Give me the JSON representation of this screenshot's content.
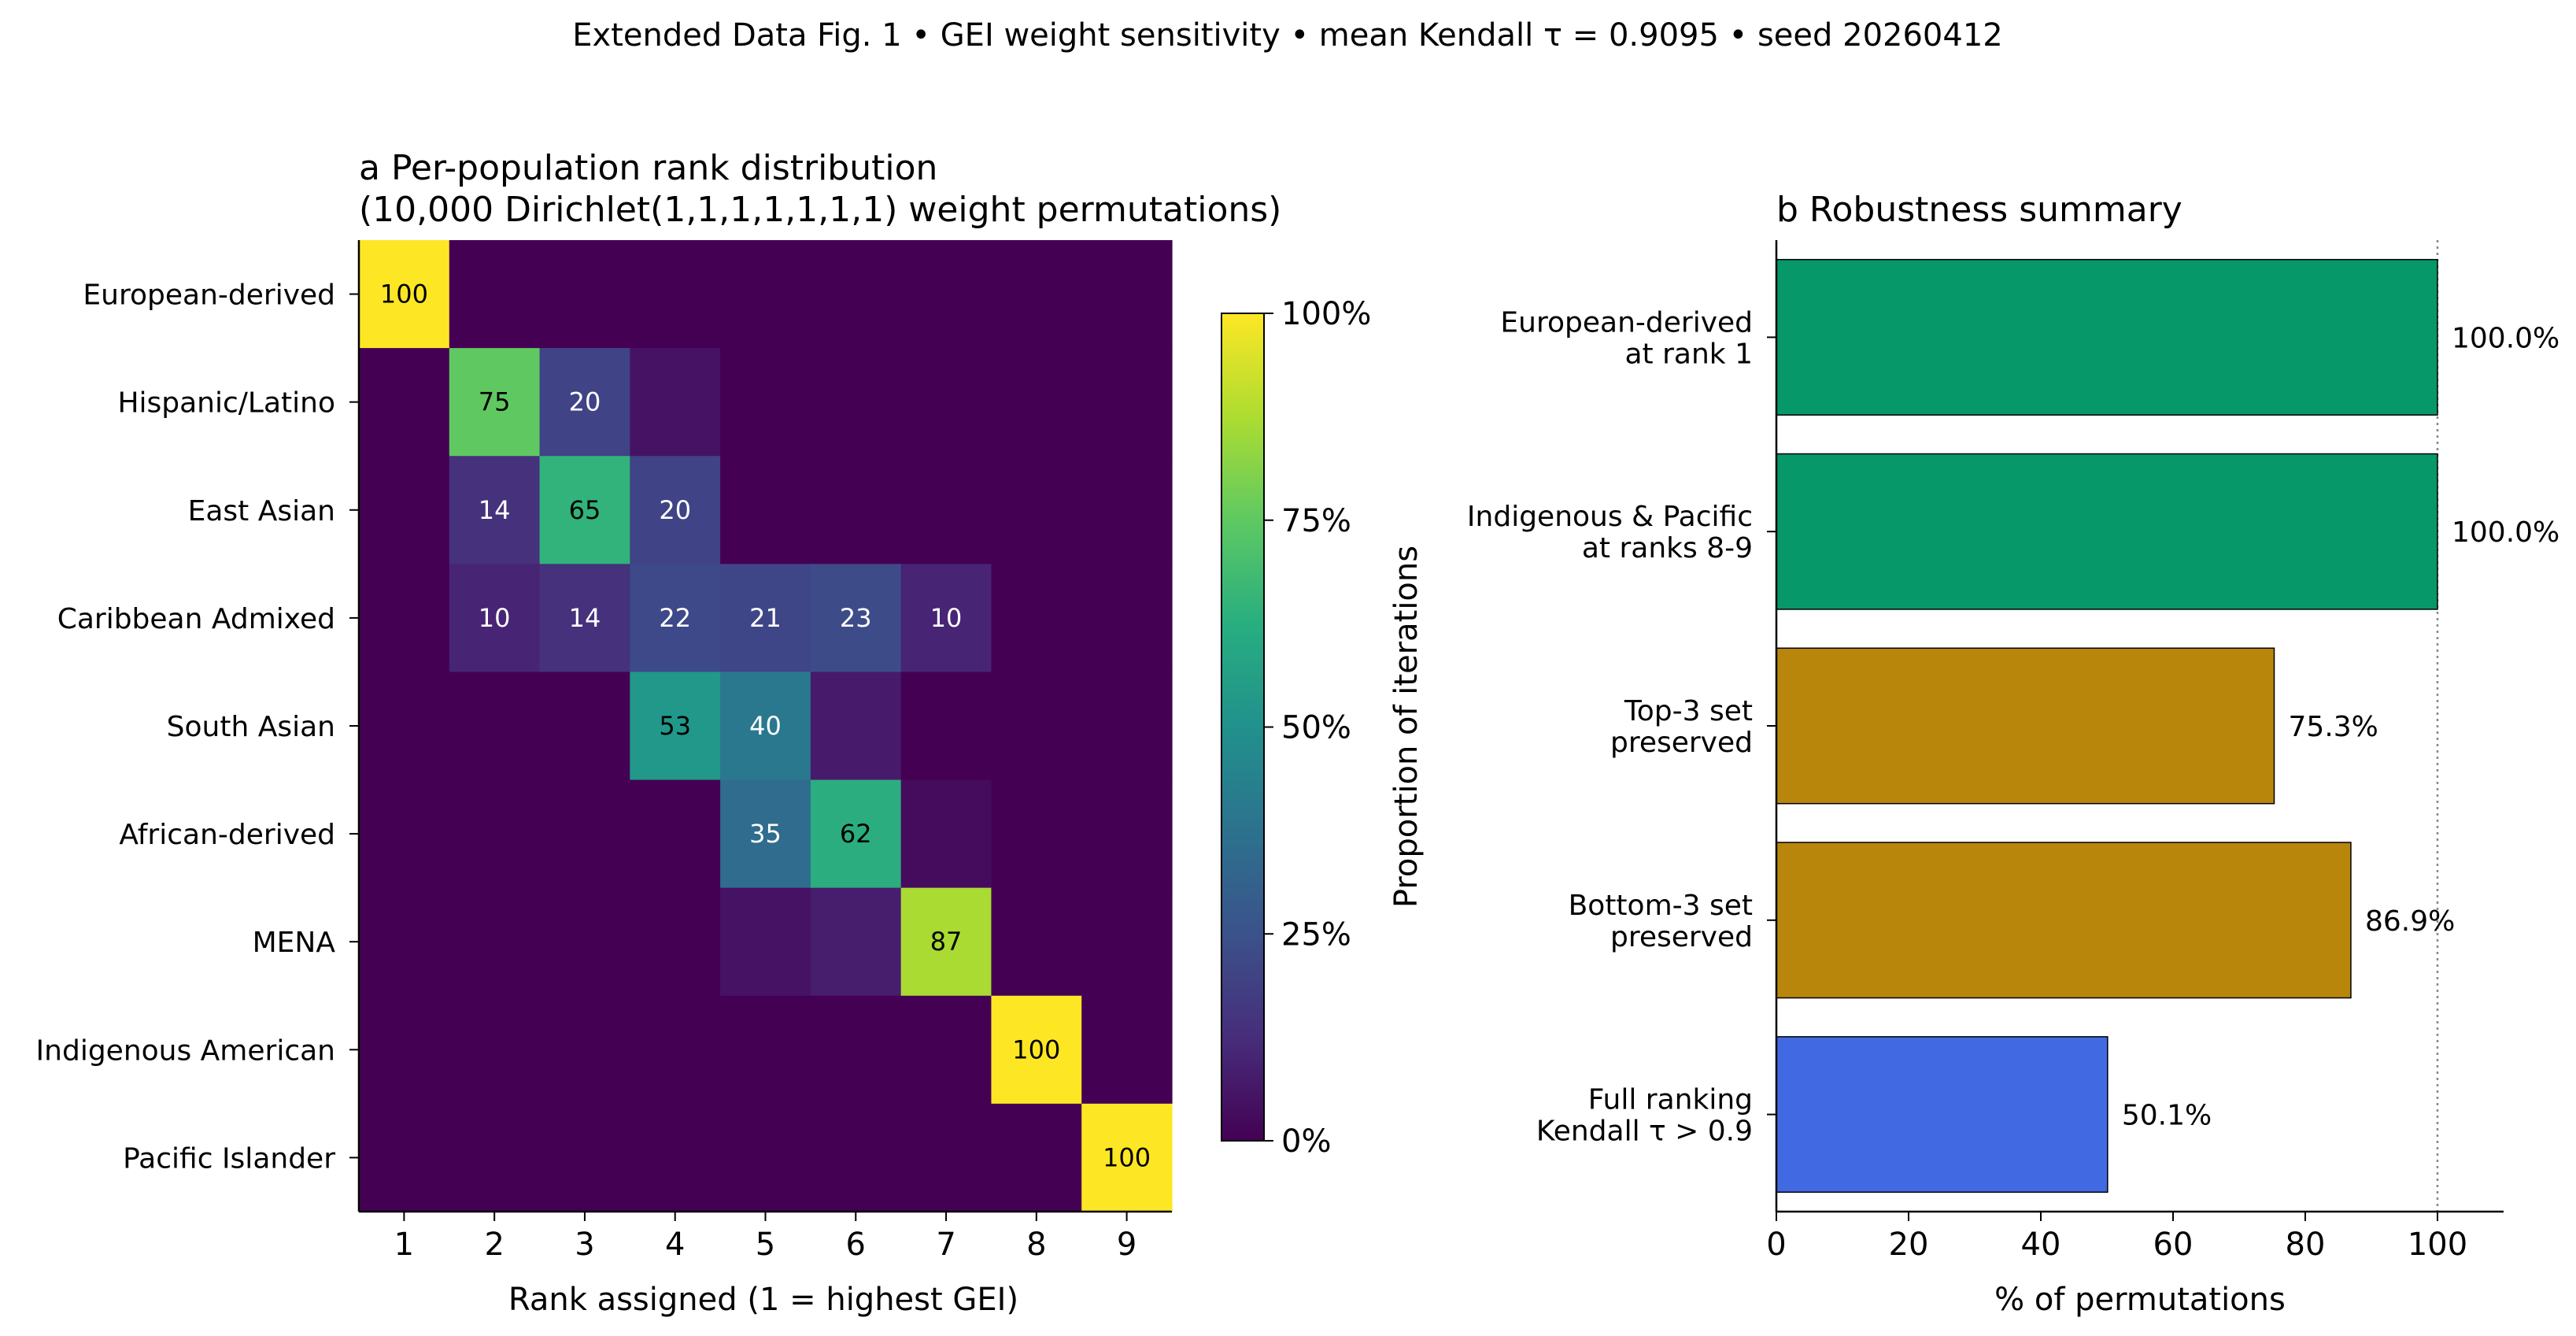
{
  "figure": {
    "suptitle": "Extended Data Fig. 1  •  GEI weight sensitivity  •  mean Kendall τ = 0.9095  •  seed 20260412"
  },
  "chart_data": [
    {
      "type": "heatmap",
      "title_line1": "a  Per-population rank distribution",
      "title_line2": "(10,000 Dirichlet(1,1,1,1,1,1,1) weight permutations)",
      "xlabel": "Rank assigned (1 = highest GEI)",
      "rows": [
        "European-derived",
        "Hispanic/Latino",
        "East Asian",
        "Caribbean Admixed",
        "South Asian",
        "African-derived",
        "MENA",
        "Indigenous American",
        "Pacific Islander"
      ],
      "columns": [
        "1",
        "2",
        "3",
        "4",
        "5",
        "6",
        "7",
        "8",
        "9"
      ],
      "values": [
        [
          100,
          0,
          0,
          0,
          0,
          0,
          0,
          0,
          0
        ],
        [
          0,
          75,
          20,
          5,
          0,
          0,
          0,
          0,
          0
        ],
        [
          0,
          14,
          65,
          20,
          0,
          0,
          0,
          0,
          0
        ],
        [
          0,
          10,
          14,
          22,
          21,
          23,
          10,
          0,
          0
        ],
        [
          0,
          0,
          0,
          53,
          40,
          7,
          0,
          0,
          0
        ],
        [
          0,
          0,
          0,
          0,
          35,
          62,
          3,
          0,
          0
        ],
        [
          0,
          0,
          0,
          0,
          5,
          8,
          87,
          0,
          0
        ],
        [
          0,
          0,
          0,
          0,
          0,
          0,
          0,
          100,
          0
        ],
        [
          0,
          0,
          0,
          0,
          0,
          0,
          0,
          0,
          100
        ]
      ],
      "cell_labels": [
        [
          "100",
          "",
          "",
          "",
          "",
          "",
          "",
          "",
          ""
        ],
        [
          "",
          "75",
          "20",
          "",
          "",
          "",
          "",
          "",
          ""
        ],
        [
          "",
          "14",
          "65",
          "20",
          "",
          "",
          "",
          "",
          ""
        ],
        [
          "",
          "10",
          "14",
          "22",
          "21",
          "23",
          "10",
          "",
          ""
        ],
        [
          "",
          "",
          "",
          "53",
          "40",
          "",
          "",
          "",
          ""
        ],
        [
          "",
          "",
          "",
          "",
          "35",
          "62",
          "",
          "",
          ""
        ],
        [
          "",
          "",
          "",
          "",
          "",
          "",
          "87",
          "",
          ""
        ],
        [
          "",
          "",
          "",
          "",
          "",
          "",
          "",
          "100",
          ""
        ],
        [
          "",
          "",
          "",
          "",
          "",
          "",
          "",
          "",
          "100"
        ]
      ],
      "colormap": "viridis",
      "colorbar": {
        "label": "Proportion of iterations",
        "range": [
          0,
          100
        ],
        "ticks": [
          0,
          25,
          50,
          75,
          100
        ],
        "tick_labels": [
          "0%",
          "25%",
          "50%",
          "75%",
          "100%"
        ]
      }
    },
    {
      "type": "bar",
      "orientation": "horizontal",
      "title": "b  Robustness summary",
      "xlabel": "% of permutations",
      "xlim": [
        0,
        110
      ],
      "xticks": [
        0,
        20,
        40,
        60,
        80,
        100
      ],
      "reference_line": 100,
      "categories": [
        [
          "European-derived",
          "at rank 1"
        ],
        [
          "Indigenous & Pacific",
          "at ranks 8-9"
        ],
        [
          "Top-3 set",
          "preserved"
        ],
        [
          "Bottom-3 set",
          "preserved"
        ],
        [
          "Full ranking",
          "Kendall τ > 0.9"
        ]
      ],
      "values": [
        100.0,
        100.0,
        75.3,
        86.9,
        50.1
      ],
      "value_labels": [
        "100.0%",
        "100.0%",
        "75.3%",
        "86.9%",
        "50.1%"
      ],
      "colors": [
        "#069869",
        "#069869",
        "#b8860b",
        "#b8860b",
        "#4169e1"
      ]
    }
  ]
}
